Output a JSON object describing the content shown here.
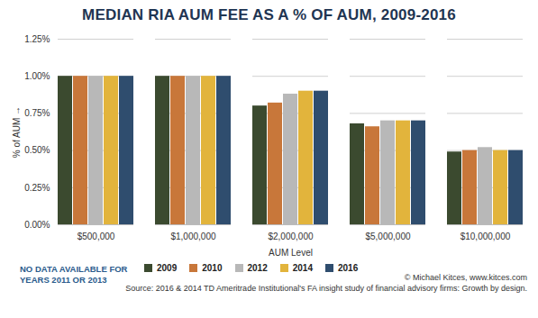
{
  "chart_data": {
    "type": "bar",
    "title": "MEDIAN RIA AUM FEE AS A % OF AUM, 2009-2016",
    "x_label": "AUM Level",
    "y_label": "% of AUM",
    "categories": [
      "$500,000",
      "$1,000,000",
      "$2,000,000",
      "$5,000,000",
      "$10,000,000"
    ],
    "series": [
      {
        "name": "2009",
        "color": "#3b4a2f",
        "values": [
          1.0,
          1.0,
          0.8,
          0.68,
          0.49
        ]
      },
      {
        "name": "2010",
        "color": "#c8773a",
        "values": [
          1.0,
          1.0,
          0.82,
          0.66,
          0.5
        ]
      },
      {
        "name": "2012",
        "color": "#b8b8b8",
        "values": [
          1.0,
          1.0,
          0.88,
          0.7,
          0.52
        ]
      },
      {
        "name": "2014",
        "color": "#e2b43c",
        "values": [
          1.0,
          1.0,
          0.9,
          0.7,
          0.5
        ]
      },
      {
        "name": "2016",
        "color": "#2f4d6e",
        "values": [
          1.0,
          1.0,
          0.9,
          0.7,
          0.5
        ]
      }
    ],
    "ylim": [
      0,
      1.25
    ],
    "yticks": [
      {
        "value": 0,
        "label": "0.00%"
      },
      {
        "value": 0.25,
        "label": "0.25%"
      },
      {
        "value": 0.5,
        "label": "0.50%"
      },
      {
        "value": 0.75,
        "label": "0.75%"
      },
      {
        "value": 1.0,
        "label": "1.00%"
      },
      {
        "value": 1.25,
        "label": "1.25%"
      }
    ],
    "grid": true,
    "legend": "bottom",
    "annotations": [
      "NO DATA AVAILABLE FOR YEARS 2011 OR 2013",
      "© Michael Kitces, www.kitces.com",
      "Source: 2016 & 2014 TD Ameritrade Institutional's FA insight study of financial advisory firms: Growth by design."
    ]
  }
}
